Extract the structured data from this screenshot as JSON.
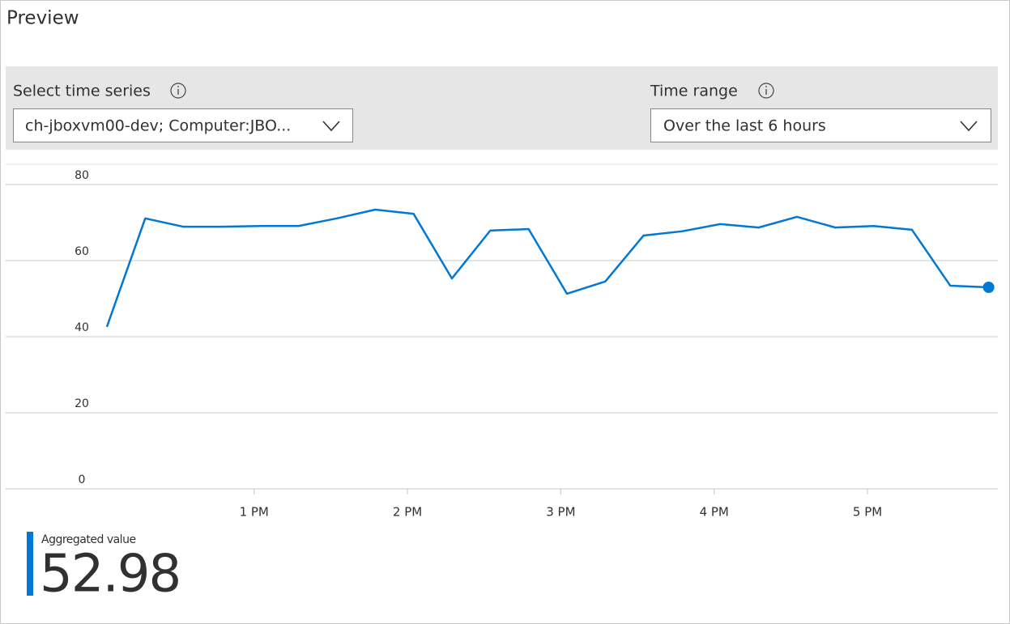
{
  "header": {
    "title": "Preview"
  },
  "controls": {
    "time_series": {
      "label": "Select time series",
      "selected": "ch-jboxvm00-dev; Computer:JBO..."
    },
    "time_range": {
      "label": "Time range",
      "selected": "Over the last 6 hours"
    }
  },
  "chart_data": {
    "type": "line",
    "color": "#0078d4",
    "grid": true,
    "last_point_marker": true,
    "x": [
      12.04,
      12.29,
      12.54,
      12.79,
      13.04,
      13.29,
      13.54,
      13.79,
      14.04,
      14.29,
      14.54,
      14.79,
      15.04,
      15.29,
      15.54,
      15.79,
      16.04,
      16.29,
      16.54,
      16.79,
      17.04,
      17.29,
      17.54,
      17.79
    ],
    "values": [
      42.6,
      71.1,
      68.9,
      68.9,
      69.1,
      69.1,
      71.1,
      73.4,
      72.3,
      55.3,
      67.9,
      68.3,
      51.3,
      54.5,
      66.6,
      67.7,
      69.6,
      68.7,
      71.5,
      68.7,
      69.1,
      68.1,
      53.4,
      52.98
    ],
    "xlim": [
      11.38,
      17.85
    ],
    "xticks": [
      {
        "value": 13,
        "label": "1 PM"
      },
      {
        "value": 14,
        "label": "2 PM"
      },
      {
        "value": 15,
        "label": "3 PM"
      },
      {
        "value": 16,
        "label": "4 PM"
      },
      {
        "value": 17,
        "label": "5 PM"
      }
    ],
    "ylim": [
      0,
      85
    ],
    "yticks": [
      0,
      20,
      40,
      60,
      80
    ]
  },
  "aggregated": {
    "label": "Aggregated value",
    "value": 52.98
  }
}
